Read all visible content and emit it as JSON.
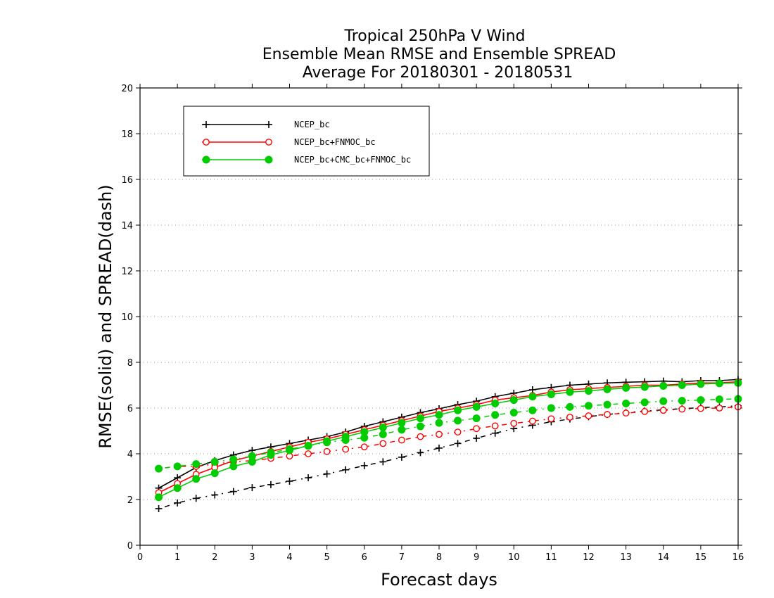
{
  "chart_data": {
    "type": "line",
    "title_lines": [
      "Tropical 250hPa V Wind",
      "Ensemble Mean RMSE and Ensemble SPREAD",
      "Average For 20180301 - 20180531"
    ],
    "xlabel": "Forecast days",
    "ylabel": "RMSE(solid) and SPREAD(dash)",
    "xlim": [
      0,
      16
    ],
    "ylim": [
      0,
      20
    ],
    "x_ticks": [
      "0",
      "1",
      "2",
      "3",
      "4",
      "5",
      "6",
      "7",
      "8",
      "9",
      "10",
      "11",
      "12",
      "13",
      "14",
      "15",
      "16"
    ],
    "y_ticks": [
      "0",
      "2",
      "4",
      "6",
      "8",
      "10",
      "12",
      "14",
      "16",
      "18",
      "20"
    ],
    "grid": "horizontal dotted",
    "legend_position": "top-left",
    "x": [
      0.5,
      1,
      1.5,
      2,
      2.5,
      3,
      3.5,
      4,
      4.5,
      5,
      5.5,
      6,
      6.5,
      7,
      7.5,
      8,
      8.5,
      9,
      9.5,
      10,
      10.5,
      11,
      11.5,
      12,
      12.5,
      13,
      13.5,
      14,
      14.5,
      15,
      15.5,
      16
    ],
    "series": [
      {
        "name": "NCEP_bc",
        "color": "#000000",
        "marker": "plus",
        "rmse": [
          2.5,
          2.95,
          3.4,
          3.7,
          3.95,
          4.15,
          4.3,
          4.45,
          4.6,
          4.75,
          4.95,
          5.2,
          5.4,
          5.6,
          5.8,
          5.97,
          6.15,
          6.3,
          6.5,
          6.65,
          6.8,
          6.9,
          7.0,
          7.05,
          7.1,
          7.13,
          7.15,
          7.18,
          7.15,
          7.2,
          7.2,
          7.25
        ],
        "spread": [
          1.6,
          1.85,
          2.05,
          2.2,
          2.35,
          2.52,
          2.65,
          2.8,
          2.95,
          3.12,
          3.3,
          3.48,
          3.65,
          3.85,
          4.05,
          4.25,
          4.45,
          4.68,
          4.9,
          5.1,
          5.25,
          5.4,
          5.52,
          5.62,
          5.72,
          5.8,
          5.87,
          5.92,
          5.97,
          6.02,
          6.05,
          6.1
        ]
      },
      {
        "name": "NCEP_bc+FNMOC_bc",
        "color": "#ff0000",
        "marker": "open-circle",
        "rmse": [
          2.3,
          2.7,
          3.1,
          3.4,
          3.7,
          3.9,
          4.1,
          4.3,
          4.5,
          4.65,
          4.85,
          5.05,
          5.25,
          5.45,
          5.65,
          5.85,
          6.0,
          6.15,
          6.35,
          6.45,
          6.55,
          6.7,
          6.8,
          6.85,
          6.9,
          6.95,
          7.0,
          7.0,
          7.05,
          7.1,
          7.1,
          7.15
        ],
        "spread": [
          3.35,
          3.45,
          3.45,
          3.55,
          3.65,
          3.7,
          3.8,
          3.9,
          4.0,
          4.1,
          4.2,
          4.3,
          4.45,
          4.6,
          4.75,
          4.85,
          4.95,
          5.1,
          5.22,
          5.33,
          5.43,
          5.53,
          5.6,
          5.66,
          5.72,
          5.78,
          5.85,
          5.9,
          5.95,
          5.98,
          6.0,
          6.05
        ]
      },
      {
        "name": "NCEP_bc+CMC_bc+FNMOC_bc",
        "color": "#00cc00",
        "marker": "filled-circle",
        "rmse": [
          2.1,
          2.5,
          2.9,
          3.15,
          3.45,
          3.65,
          3.95,
          4.15,
          4.35,
          4.55,
          4.75,
          4.95,
          5.15,
          5.35,
          5.55,
          5.7,
          5.9,
          6.05,
          6.2,
          6.35,
          6.5,
          6.6,
          6.7,
          6.75,
          6.82,
          6.88,
          6.92,
          6.97,
          7.0,
          7.05,
          7.08,
          7.1
        ],
        "spread": [
          3.35,
          3.45,
          3.55,
          3.65,
          3.75,
          3.9,
          4.05,
          4.2,
          4.35,
          4.5,
          4.6,
          4.7,
          4.85,
          5.05,
          5.2,
          5.35,
          5.45,
          5.55,
          5.7,
          5.8,
          5.9,
          6.0,
          6.05,
          6.1,
          6.15,
          6.2,
          6.25,
          6.3,
          6.32,
          6.35,
          6.38,
          6.4
        ]
      }
    ]
  }
}
